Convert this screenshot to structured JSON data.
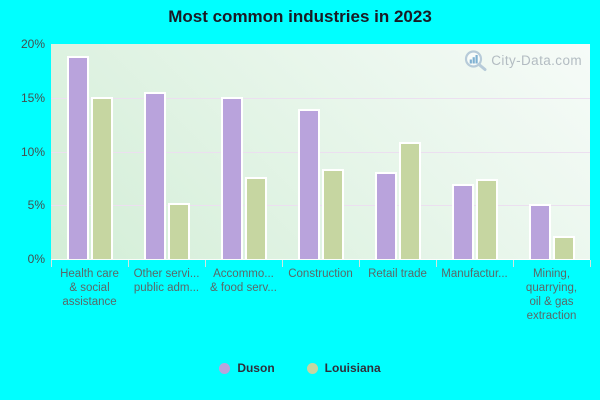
{
  "title": "Most common industries in 2023",
  "watermark": {
    "text": "City-Data.com"
  },
  "colors": {
    "background": "#00ffff",
    "plot_gradient_start": "#f6fbf8",
    "plot_gradient_end": "#d3eed7",
    "gridline": "#ecdff0",
    "bar_border": "#ffffff",
    "title_text": "#1a1a24",
    "axis_text": "#454e4e",
    "category_text": "#5a6868",
    "legend_text": "#2e2e3a",
    "watermark_text": "#b3bcc2",
    "tick": "#cfe6de",
    "duson_bar": "#b9a3dc",
    "louisiana_bar": "#c6d6a1"
  },
  "chart_data": {
    "type": "bar",
    "title": "Most common industries in 2023",
    "categories": [
      "Health care & social assistance",
      "Other servi... public adm...",
      "Accommo... & food serv...",
      "Construction",
      "Retail trade",
      "Manufactur...",
      "Mining, quarrying, oil & gas extraction"
    ],
    "category_display_lines": [
      [
        "Health care",
        "& social",
        "assistance"
      ],
      [
        "Other servi...",
        "public adm..."
      ],
      [
        "Accommo...",
        "& food serv..."
      ],
      [
        "Construction"
      ],
      [
        "Retail trade"
      ],
      [
        "Manufactur..."
      ],
      [
        "Mining,",
        "quarrying,",
        "oil & gas",
        "extraction"
      ]
    ],
    "series": [
      {
        "name": "Duson",
        "color": "#b9a3dc",
        "values": [
          18.9,
          15.5,
          15.1,
          14.0,
          8.1,
          7.0,
          5.1
        ]
      },
      {
        "name": "Louisiana",
        "color": "#c6d6a1",
        "values": [
          15.1,
          5.2,
          7.6,
          8.4,
          10.9,
          7.4,
          2.1
        ]
      }
    ],
    "xlabel": "",
    "ylabel": "",
    "ylim": [
      0,
      20
    ],
    "ytick_labels": [
      "0%",
      "5%",
      "10%",
      "15%",
      "20%"
    ],
    "grid": true,
    "legend_position": "bottom"
  }
}
